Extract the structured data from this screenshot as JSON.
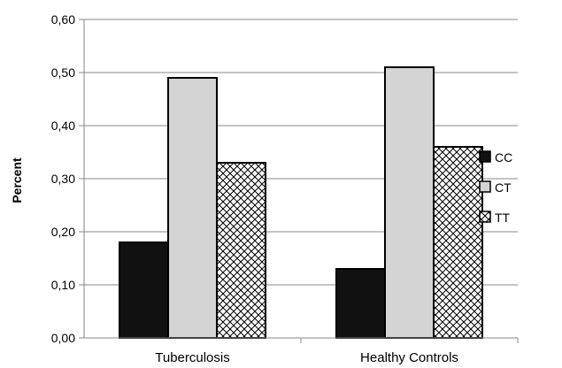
{
  "chart_data": {
    "type": "bar",
    "title": "",
    "xlabel": "",
    "ylabel": "Percent",
    "ylim": [
      0,
      0.6
    ],
    "yticks": [
      "0,00",
      "0,10",
      "0,20",
      "0,30",
      "0,40",
      "0,50",
      "0,60"
    ],
    "categories": [
      "Tuberculosis",
      "Healthy Controls"
    ],
    "series": [
      {
        "name": "CC",
        "values": [
          0.18,
          0.13
        ],
        "fill": "black"
      },
      {
        "name": "CT",
        "values": [
          0.49,
          0.51
        ],
        "fill": "lightgray"
      },
      {
        "name": "TT",
        "values": [
          0.33,
          0.36
        ],
        "fill": "crosshatch"
      }
    ],
    "grid": true,
    "legend": "right"
  },
  "colors": {
    "solid": "#111111",
    "light": "#d4d4d4",
    "grid": "#878787",
    "outline": "#000000"
  }
}
